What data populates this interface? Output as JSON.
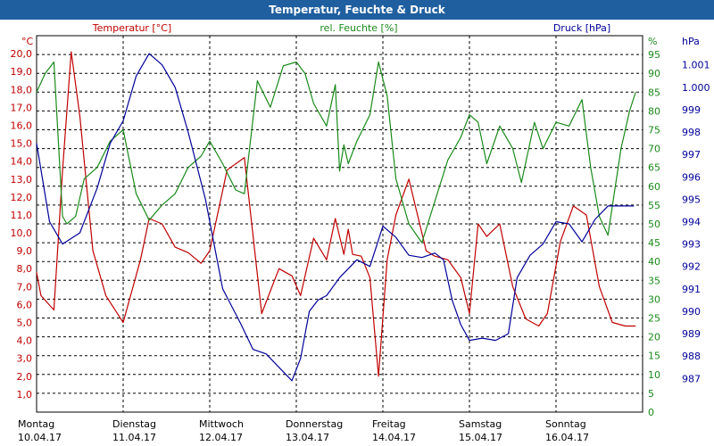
{
  "window": {
    "title": "Temperatur, Feuchte & Druck"
  },
  "colors": {
    "temperature": "#c00000",
    "humidity": "#1a8a1a",
    "pressure": "#000099",
    "grid": "#000000",
    "titlebar": "#1f5f9f"
  },
  "chart_data": {
    "type": "line",
    "title": "Temperatur, Feuchte & Druck",
    "grid": true,
    "xlim": [
      0,
      7
    ],
    "day_labels": [
      {
        "day": "Montag",
        "date": "10.04.17"
      },
      {
        "day": "Dienstag",
        "date": "11.04.17"
      },
      {
        "day": "Mittwoch",
        "date": "12.04.17"
      },
      {
        "day": "Donnerstag",
        "date": "13.04.17"
      },
      {
        "day": "Freitag",
        "date": "14.04.17"
      },
      {
        "day": "Samstag",
        "date": "15.04.17"
      },
      {
        "day": "Sonntag",
        "date": "16.04.17"
      }
    ],
    "axes": {
      "temperature": {
        "label": "Temperatur [°C]",
        "unit": "°C",
        "ylim": [
          0,
          21
        ],
        "ticks": [
          "1,0",
          "2,0",
          "3,0",
          "4,0",
          "5,0",
          "6,0",
          "7,0",
          "8,0",
          "9,0",
          "10,0",
          "11,0",
          "12,0",
          "13,0",
          "14,0",
          "15,0",
          "16,0",
          "17,0",
          "18,0",
          "19,0",
          "20,0"
        ]
      },
      "humidity": {
        "label": "rel. Feuchte [%]",
        "unit": "%",
        "ylim": [
          0,
          100
        ],
        "ticks": [
          "0",
          "5",
          "10",
          "15",
          "20",
          "25",
          "30",
          "35",
          "40",
          "45",
          "50",
          "55",
          "60",
          "65",
          "70",
          "75",
          "80",
          "85",
          "90",
          "95"
        ]
      },
      "pressure": {
        "label": "Druck [hPa]",
        "unit": "hPa",
        "ylim": [
          985.5,
          1002.3
        ],
        "ticks": [
          "987",
          "988",
          "989",
          "990",
          "991",
          "992",
          "993",
          "994",
          "995",
          "996",
          "997",
          "998",
          "999",
          "1.000",
          "1.001"
        ]
      }
    },
    "series": [
      {
        "name": "Temperatur [°C]",
        "axis": "temperature",
        "x": [
          0,
          0.05,
          0.2,
          0.3,
          0.4,
          0.5,
          0.65,
          0.8,
          1.0,
          1.2,
          1.3,
          1.45,
          1.6,
          1.75,
          1.9,
          2.0,
          2.2,
          2.4,
          2.6,
          2.8,
          2.95,
          3.05,
          3.2,
          3.35,
          3.45,
          3.55,
          3.6,
          3.65,
          3.75,
          3.85,
          3.95,
          4.05,
          4.15,
          4.3,
          4.4,
          4.5,
          4.6,
          4.75,
          4.9,
          5.0,
          5.1,
          5.2,
          5.35,
          5.5,
          5.65,
          5.8,
          5.9,
          6.05,
          6.2,
          6.35,
          6.5,
          6.65,
          6.8,
          6.92
        ],
        "values": [
          7.8,
          6.5,
          5.7,
          13.5,
          20.1,
          16.5,
          9.0,
          6.5,
          5.0,
          8.5,
          10.8,
          10.5,
          9.2,
          8.9,
          8.3,
          9.0,
          13.5,
          14.2,
          5.5,
          8.0,
          7.6,
          6.5,
          9.7,
          8.5,
          10.8,
          8.8,
          10.2,
          8.8,
          8.7,
          7.5,
          2.0,
          8.5,
          11.0,
          13.0,
          11.0,
          9.0,
          8.7,
          8.5,
          7.5,
          5.5,
          10.5,
          9.8,
          10.5,
          7.0,
          5.2,
          4.8,
          5.5,
          9.5,
          11.5,
          11.0,
          7.0,
          5.0,
          4.8,
          4.8
        ]
      },
      {
        "name": "rel. Feuchte [%]",
        "axis": "humidity",
        "x": [
          0,
          0.1,
          0.2,
          0.3,
          0.35,
          0.45,
          0.55,
          0.7,
          0.85,
          1.0,
          1.15,
          1.3,
          1.45,
          1.6,
          1.75,
          1.9,
          2.0,
          2.15,
          2.3,
          2.4,
          2.55,
          2.7,
          2.85,
          3.0,
          3.1,
          3.2,
          3.35,
          3.45,
          3.5,
          3.55,
          3.6,
          3.7,
          3.85,
          3.95,
          4.05,
          4.15,
          4.3,
          4.45,
          4.6,
          4.75,
          4.9,
          5.0,
          5.1,
          5.2,
          5.35,
          5.5,
          5.6,
          5.75,
          5.85,
          6.0,
          6.15,
          6.3,
          6.4,
          6.5,
          6.6,
          6.75,
          6.85,
          6.92
        ],
        "values": [
          85,
          90,
          93,
          52,
          50,
          52,
          62,
          65,
          72,
          75,
          58,
          51,
          55,
          58,
          65,
          68,
          72,
          66,
          59,
          58,
          88,
          81,
          92,
          93,
          90,
          82,
          76,
          87,
          64,
          71,
          66,
          72,
          79,
          93,
          84,
          62,
          50,
          45,
          56,
          67,
          73,
          79,
          77,
          66,
          76,
          70,
          61,
          77,
          70,
          77,
          76,
          83,
          65,
          52,
          47,
          70,
          80,
          85
        ]
      },
      {
        "name": "Druck [hPa]",
        "axis": "pressure",
        "x": [
          0,
          0.15,
          0.3,
          0.5,
          0.7,
          0.85,
          1.0,
          1.15,
          1.3,
          1.45,
          1.6,
          1.75,
          1.95,
          2.15,
          2.35,
          2.5,
          2.65,
          2.8,
          2.95,
          3.05,
          3.15,
          3.25,
          3.35,
          3.5,
          3.7,
          3.85,
          4.0,
          4.15,
          4.3,
          4.45,
          4.6,
          4.7,
          4.8,
          4.9,
          5.0,
          5.15,
          5.3,
          5.45,
          5.55,
          5.7,
          5.85,
          6.0,
          6.15,
          6.3,
          6.45,
          6.6,
          6.75,
          6.9
        ],
        "values": [
          997.5,
          994.0,
          993.0,
          993.5,
          995.5,
          997.5,
          998.5,
          1000.5,
          1001.5,
          1001.0,
          1000.0,
          998.0,
          995.0,
          991.0,
          989.5,
          988.3,
          988.1,
          987.5,
          986.9,
          987.9,
          990.0,
          990.5,
          990.7,
          991.5,
          992.3,
          992.0,
          993.8,
          993.3,
          992.5,
          992.4,
          992.6,
          992.3,
          990.5,
          989.4,
          988.7,
          988.8,
          988.7,
          989.0,
          991.5,
          992.5,
          993.0,
          994.0,
          993.9,
          993.1,
          994.1,
          994.7,
          994.7,
          994.7
        ]
      }
    ]
  }
}
